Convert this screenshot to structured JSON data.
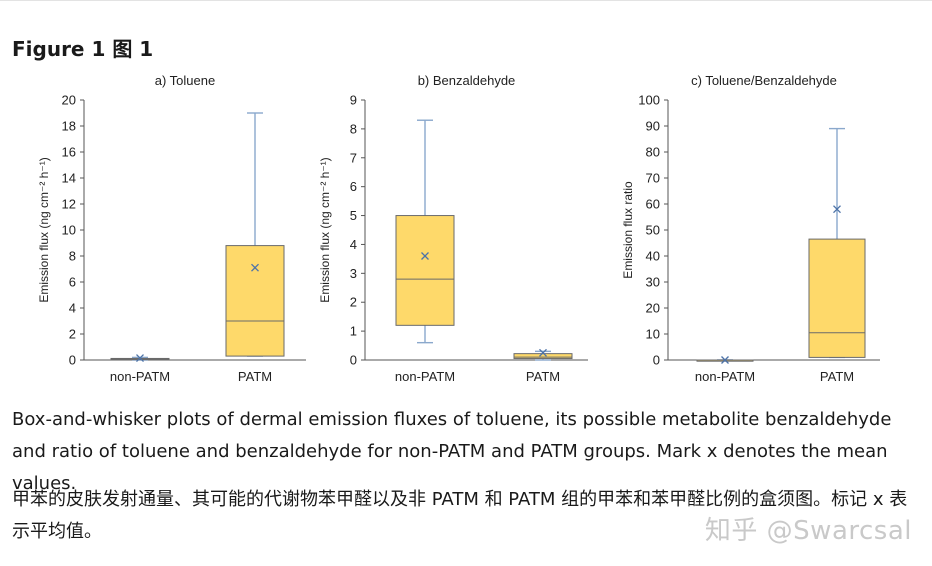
{
  "figure_title": "Figure 1 图 1",
  "chart_data": [
    {
      "type": "boxplot",
      "title": "a) Toluene",
      "ylabel": "Emission flux (ng cm⁻² h⁻¹)",
      "xlabel": "",
      "ylim": [
        0,
        20
      ],
      "yticks": [
        0,
        2,
        4,
        6,
        8,
        10,
        12,
        14,
        16,
        18,
        20
      ],
      "categories": [
        "non-PATM",
        "PATM"
      ],
      "boxes": [
        {
          "min": 0.0,
          "q1": 0.05,
          "median": 0.08,
          "q3": 0.12,
          "max": 0.2,
          "mean": 0.15
        },
        {
          "min": 0.3,
          "q1": 0.3,
          "median": 3.0,
          "q3": 8.8,
          "max": 19.0,
          "mean": 7.1
        }
      ],
      "grid": false
    },
    {
      "type": "boxplot",
      "title": "b) Benzaldehyde",
      "ylabel": "Emission flux (ng cm⁻² h⁻¹)",
      "xlabel": "",
      "ylim": [
        0,
        9
      ],
      "yticks": [
        0,
        1,
        2,
        3,
        4,
        5,
        6,
        7,
        8,
        9
      ],
      "categories": [
        "non-PATM",
        "PATM"
      ],
      "boxes": [
        {
          "min": 0.6,
          "q1": 1.2,
          "median": 2.8,
          "q3": 5.0,
          "max": 8.3,
          "mean": 3.6
        },
        {
          "min": 0.0,
          "q1": 0.05,
          "median": 0.1,
          "q3": 0.22,
          "max": 0.3,
          "mean": 0.25
        }
      ],
      "grid": false
    },
    {
      "type": "boxplot",
      "title": "c) Toluene/Benzaldehyde",
      "ylabel": "Emission flux ratio",
      "xlabel": "",
      "ylim": [
        0,
        100
      ],
      "yticks": [
        0,
        10,
        20,
        30,
        40,
        50,
        60,
        70,
        80,
        90,
        100
      ],
      "categories": [
        "non-PATM",
        "PATM"
      ],
      "boxes": [
        {
          "min": 0.0,
          "q1": 0.0,
          "median": 0.0,
          "q3": 0.0,
          "max": 0.0,
          "mean": 0.0
        },
        {
          "min": 1.0,
          "q1": 1.0,
          "median": 10.5,
          "q3": 46.5,
          "max": 89.0,
          "mean": 58.0
        }
      ],
      "grid": false
    }
  ],
  "colors": {
    "box_fill": "#fed96a",
    "box_edge": "#6a6a6a",
    "whisker": "#8aa8cc",
    "mean_marker": "#4d73a8",
    "axis": "#555555"
  },
  "caption_en": "Box-and-whisker plots of dermal emission fluxes of toluene, its possible metabolite benzaldehyde and ratio of toluene and benzaldehyde for non-PATM and PATM groups. Mark x denotes the mean values.",
  "caption_zh": "甲苯的皮肤发射通量、其可能的代谢物苯甲醛以及非 PATM 和 PATM 组的甲苯和苯甲醛比例的盒须图。标记 x 表示平均值。",
  "watermark": "知乎 @Swarcsal"
}
